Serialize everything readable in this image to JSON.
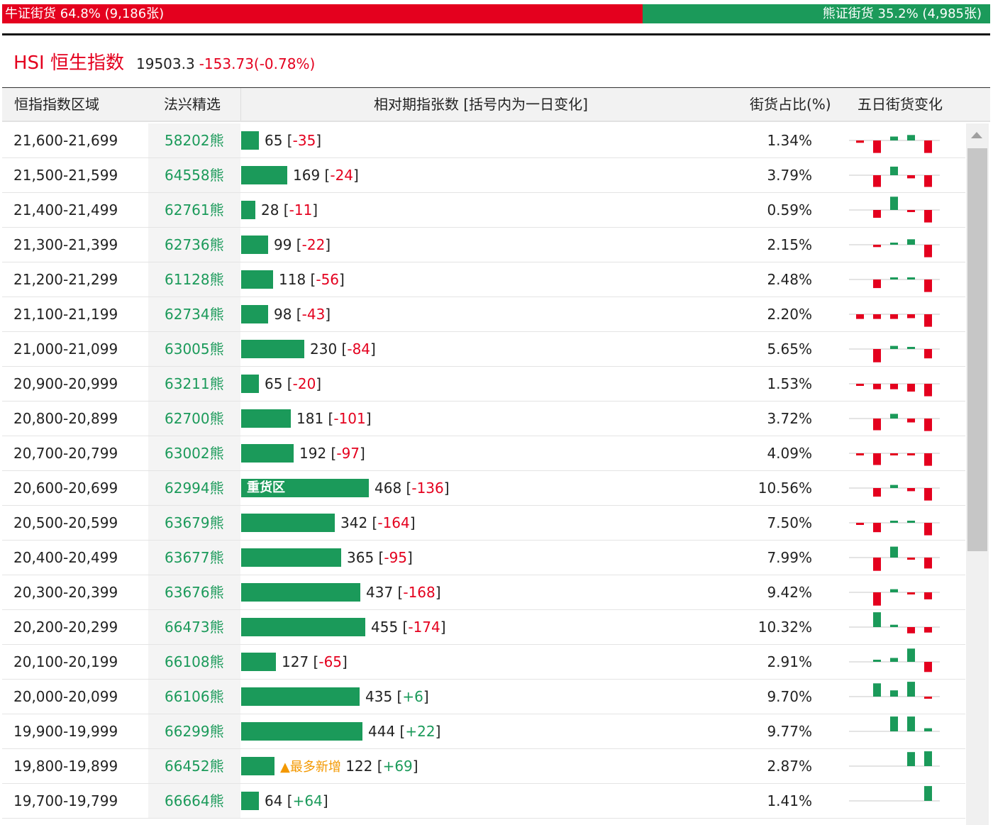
{
  "summary": {
    "bull_label": "牛证街货 64.8% (9,186张)",
    "bear_label": "熊证街货 35.2% (4,985张)",
    "bull_share": 0.648
  },
  "index": {
    "name": "HSI 恒生指数",
    "price": "19503.3",
    "change": "-153.73(-0.78%)"
  },
  "table": {
    "headers": {
      "range": "恒指指数区域",
      "pick": "法兴精选",
      "count": "相对期指张数 [括号内为一日变化]",
      "share": "街货占比(%)",
      "five_day": "五日街货变化"
    },
    "heavy_tag": "重货区",
    "most_added_badge": "▲最多新增",
    "rows": [
      {
        "range": "21,600-21,699",
        "code": "58202熊",
        "count": 65,
        "change": "-35",
        "pct": "1.34%",
        "spark": [
          -0.15,
          -0.8,
          0.25,
          0.35,
          -0.8
        ]
      },
      {
        "range": "21,500-21,599",
        "code": "64558熊",
        "count": 169,
        "change": "-24",
        "pct": "3.79%",
        "spark": [
          0,
          -0.75,
          0.55,
          -0.2,
          -0.75
        ]
      },
      {
        "range": "21,400-21,499",
        "code": "62761熊",
        "count": 28,
        "change": "-11",
        "pct": "0.59%",
        "spark": [
          0,
          -0.5,
          0.85,
          -0.12,
          -0.8
        ]
      },
      {
        "range": "21,300-21,399",
        "code": "62736熊",
        "count": 99,
        "change": "-22",
        "pct": "2.15%",
        "spark": [
          0,
          -0.15,
          0.05,
          0.35,
          -0.8
        ]
      },
      {
        "range": "21,200-21,299",
        "code": "61128熊",
        "count": 118,
        "change": "-56",
        "pct": "2.48%",
        "spark": [
          0,
          -0.55,
          0.06,
          0.1,
          -0.8
        ]
      },
      {
        "range": "21,100-21,199",
        "code": "62734熊",
        "count": 98,
        "change": "-43",
        "pct": "2.20%",
        "spark": [
          -0.3,
          -0.3,
          -0.3,
          -0.25,
          -0.8
        ]
      },
      {
        "range": "21,000-21,099",
        "code": "63005熊",
        "count": 230,
        "change": "-84",
        "pct": "5.65%",
        "spark": [
          0,
          -0.85,
          0.2,
          0.05,
          -0.6
        ]
      },
      {
        "range": "20,900-20,999",
        "code": "63211熊",
        "count": 65,
        "change": "-20",
        "pct": "1.53%",
        "spark": [
          -0.12,
          -0.35,
          -0.35,
          -0.5,
          -0.8
        ]
      },
      {
        "range": "20,800-20,899",
        "code": "62700熊",
        "count": 181,
        "change": "-101",
        "pct": "3.72%",
        "spark": [
          0,
          -0.75,
          0.3,
          -0.25,
          -0.8
        ]
      },
      {
        "range": "20,700-20,799",
        "code": "63002熊",
        "count": 192,
        "change": "-97",
        "pct": "4.09%",
        "spark": [
          -0.08,
          -0.75,
          -0.06,
          -0.06,
          -0.8
        ]
      },
      {
        "range": "20,600-20,699",
        "code": "62994熊",
        "count": 468,
        "change": "-136",
        "pct": "10.56%",
        "heavy": true,
        "spark": [
          0,
          -0.55,
          0.2,
          -0.2,
          -0.8
        ]
      },
      {
        "range": "20,500-20,599",
        "code": "63679熊",
        "count": 342,
        "change": "-164",
        "pct": "7.50%",
        "spark": [
          -0.08,
          -0.6,
          0.12,
          0.06,
          -0.8
        ]
      },
      {
        "range": "20,400-20,499",
        "code": "63677熊",
        "count": 365,
        "change": "-95",
        "pct": "7.99%",
        "spark": [
          0,
          -0.85,
          0.7,
          -0.06,
          -0.7
        ]
      },
      {
        "range": "20,300-20,399",
        "code": "63676熊",
        "count": 437,
        "change": "-168",
        "pct": "9.42%",
        "spark": [
          0,
          -0.85,
          0.2,
          -0.12,
          -0.45
        ]
      },
      {
        "range": "20,200-20,299",
        "code": "66473熊",
        "count": 455,
        "change": "-174",
        "pct": "10.32%",
        "spark": [
          0,
          0.95,
          0.15,
          -0.4,
          -0.35
        ]
      },
      {
        "range": "20,100-20,199",
        "code": "66108熊",
        "count": 127,
        "change": "-65",
        "pct": "2.91%",
        "spark": [
          0,
          0.06,
          0.25,
          0.85,
          -0.65
        ]
      },
      {
        "range": "20,000-20,099",
        "code": "66106熊",
        "count": 435,
        "change": "+6",
        "pct": "9.70%",
        "spark": [
          0,
          0.85,
          0.4,
          0.95,
          -0.06
        ]
      },
      {
        "range": "19,900-19,999",
        "code": "66299熊",
        "count": 444,
        "change": "+22",
        "pct": "9.77%",
        "spark": [
          0,
          0,
          0.95,
          0.95,
          0.2
        ]
      },
      {
        "range": "19,800-19,899",
        "code": "66452熊",
        "count": 122,
        "change": "+69",
        "pct": "2.87%",
        "most_added": true,
        "spark": [
          0,
          0,
          0,
          0.9,
          0.95
        ]
      },
      {
        "range": "19,700-19,799",
        "code": "66664熊",
        "count": 64,
        "change": "+64",
        "pct": "1.41%",
        "spark": [
          0,
          0,
          0,
          0,
          0.95
        ]
      }
    ]
  },
  "colors": {
    "bull_red": "#e4001e",
    "bear_green": "#1b9a5a",
    "badge_orange": "#f39800"
  },
  "icons": {
    "scroll_up": "triangle-up-icon"
  }
}
